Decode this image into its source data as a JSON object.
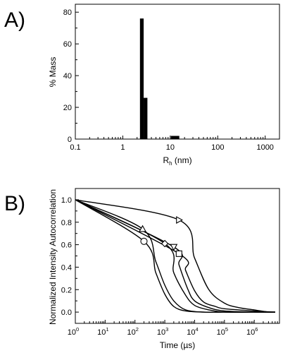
{
  "chart_data": [
    {
      "type": "bar",
      "panel_label": "A)",
      "xlabel": {
        "base": "R",
        "sub": "h",
        "rest": " (nm)"
      },
      "ylabel": "% Mass",
      "xscale": "log",
      "xlim": [
        0.1,
        2000
      ],
      "ylim": [
        0,
        85
      ],
      "xticks": [
        0.1,
        1,
        10,
        100,
        1000
      ],
      "xtick_labels": [
        "0.1",
        "1",
        "10",
        "100",
        "1000"
      ],
      "yticks": [
        0,
        20,
        40,
        60,
        80
      ],
      "ytick_labels": [
        "0",
        "20",
        "40",
        "60",
        "80"
      ],
      "grid": false,
      "bars": [
        {
          "x_start": 2.3,
          "x_end": 2.75,
          "value": 76
        },
        {
          "x_start": 2.75,
          "x_end": 3.3,
          "value": 26
        },
        {
          "x_start": 10.3,
          "x_end": 15.5,
          "value": 2
        }
      ],
      "color": "#000000"
    },
    {
      "type": "line",
      "panel_label": "B)",
      "xlabel": "Time (µs)",
      "ylabel": "Normalized Intensity Autocorrelation",
      "xscale": "log",
      "xlim": [
        1,
        7000000
      ],
      "ylim": [
        -0.1,
        1.1
      ],
      "xticks": [
        1,
        10,
        100,
        1000,
        10000,
        100000,
        1000000
      ],
      "xtick_labels": [
        {
          "base": "10",
          "exp": "0"
        },
        {
          "base": "10",
          "exp": "1"
        },
        {
          "base": "10",
          "exp": "2"
        },
        {
          "base": "10",
          "exp": "3"
        },
        {
          "base": "10",
          "exp": "4"
        },
        {
          "base": "10",
          "exp": "5"
        },
        {
          "base": "10",
          "exp": "6"
        }
      ],
      "yticks": [
        0.0,
        0.2,
        0.4,
        0.6,
        0.8,
        1.0
      ],
      "ytick_labels": [
        "0.0",
        "0.2",
        "0.4",
        "0.6",
        "0.8",
        "1.0"
      ],
      "grid": false,
      "series": [
        {
          "marker": "circle",
          "x": [
            1,
            200,
            500,
            1000,
            2000,
            5000,
            20000,
            100000,
            1000000,
            5000000
          ],
          "y": [
            1.0,
            0.63,
            0.35,
            0.16,
            0.05,
            0.01,
            0.0,
            0.0,
            0.0,
            0.0
          ]
        },
        {
          "marker": "triangle-up",
          "x": [
            1,
            180,
            500,
            1000,
            2000,
            5000,
            20000,
            100000,
            1000000,
            5000000
          ],
          "y": [
            1.0,
            0.74,
            0.45,
            0.24,
            0.1,
            0.02,
            0.0,
            0.0,
            0.0,
            0.0
          ]
        },
        {
          "marker": "diamond",
          "x": [
            1,
            1000,
            2000,
            5000,
            10000,
            30000,
            100000,
            1000000,
            5000000
          ],
          "y": [
            1.0,
            0.61,
            0.35,
            0.15,
            0.06,
            0.02,
            0.0,
            0.0,
            0.0
          ]
        },
        {
          "marker": "triangle-down",
          "x": [
            1,
            2000,
            3000,
            6000,
            10000,
            30000,
            100000,
            1000000,
            5000000
          ],
          "y": [
            1.0,
            0.58,
            0.42,
            0.2,
            0.1,
            0.04,
            0.01,
            0.0,
            0.0
          ]
        },
        {
          "marker": "square",
          "x": [
            1,
            3000,
            5000,
            10000,
            20000,
            50000,
            100000,
            1000000,
            5000000
          ],
          "y": [
            1.0,
            0.52,
            0.37,
            0.19,
            0.09,
            0.05,
            0.03,
            0.01,
            0.0
          ]
        },
        {
          "marker": "triangle-right",
          "x": [
            1,
            3000,
            10000,
            30000,
            100000,
            300000,
            1000000,
            3000000,
            5000000
          ],
          "y": [
            1.0,
            0.82,
            0.48,
            0.2,
            0.08,
            0.04,
            0.02,
            0.0,
            0.0
          ]
        }
      ],
      "color": "#000000"
    }
  ]
}
